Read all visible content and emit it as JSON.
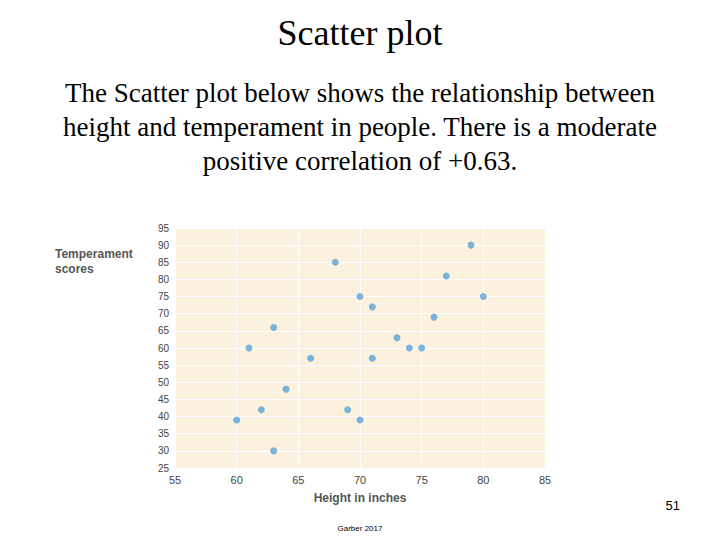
{
  "slide": {
    "title": "Scatter plot",
    "text": "The Scatter plot below shows the relationship between height and temperament in people.  There is  a moderate positive correlation of +0.63.",
    "page_number": 51,
    "footer": "Garber 2017"
  },
  "chart_data": {
    "type": "scatter",
    "x_label": "Height in inches",
    "y_label": "Temperament scores",
    "x": [
      60,
      61,
      62,
      63,
      63,
      64,
      66,
      68,
      69,
      70,
      70,
      71,
      71,
      73,
      74,
      75,
      76,
      77,
      79,
      80
    ],
    "values": [
      39,
      60,
      42,
      66,
      30,
      48,
      57,
      85,
      42,
      75,
      39,
      72,
      57,
      63,
      60,
      60,
      69,
      81,
      90,
      75
    ],
    "color": "#5ba3d6",
    "xlim": [
      55,
      85
    ],
    "xticks": [
      55,
      60,
      65,
      70,
      75,
      80,
      85
    ],
    "ylim": [
      25,
      95
    ],
    "yticks": [
      25,
      30,
      35,
      40,
      45,
      50,
      55,
      60,
      65,
      70,
      75,
      80,
      85,
      90,
      95
    ],
    "grid": true
  }
}
